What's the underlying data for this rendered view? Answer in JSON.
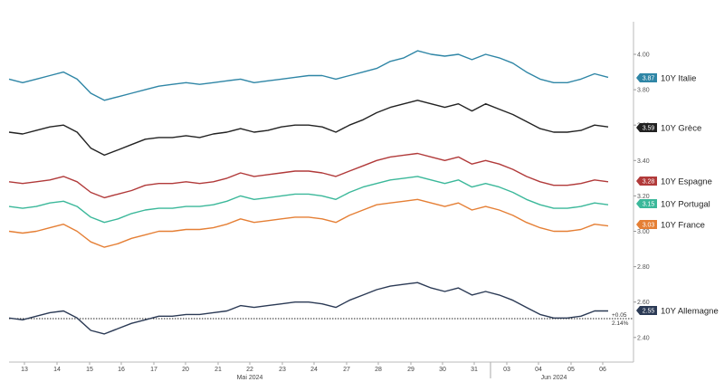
{
  "chart_data": {
    "type": "line",
    "title": "",
    "y_ticks": [
      "2.40",
      "2.60",
      "2.80",
      "3.00",
      "3.20",
      "3.40",
      "3.60",
      "3.80",
      "4.00"
    ],
    "ylim": [
      2.3,
      4.12
    ],
    "x_tick_labels": [
      "13",
      "14",
      "15",
      "16",
      "17",
      "20",
      "21",
      "22",
      "23",
      "24",
      "27",
      "28",
      "29",
      "30",
      "31",
      "03",
      "04",
      "05",
      "06"
    ],
    "month_labels": [
      "Mai 2024",
      "Jun 2024"
    ],
    "annotations": {
      "spread_change": "+0.05",
      "spread_level": "2.14%"
    },
    "grid": false,
    "legend": "right-side labels",
    "series": [
      {
        "name": "10Y Italie",
        "badge": "3.87",
        "color": "#2f86a6",
        "values": [
          3.86,
          3.84,
          3.86,
          3.88,
          3.9,
          3.86,
          3.78,
          3.74,
          3.76,
          3.78,
          3.8,
          3.82,
          3.83,
          3.84,
          3.83,
          3.84,
          3.85,
          3.86,
          3.84,
          3.85,
          3.86,
          3.87,
          3.88,
          3.88,
          3.86,
          3.88,
          3.9,
          3.92,
          3.96,
          3.98,
          4.02,
          4.0,
          3.99,
          4.0,
          3.97,
          4.0,
          3.98,
          3.95,
          3.9,
          3.86,
          3.84,
          3.84,
          3.86,
          3.89,
          3.87
        ]
      },
      {
        "name": "10Y Grèce",
        "badge": "3.59",
        "color": "#222222",
        "values": [
          3.56,
          3.55,
          3.57,
          3.59,
          3.6,
          3.56,
          3.47,
          3.43,
          3.46,
          3.49,
          3.52,
          3.53,
          3.53,
          3.54,
          3.53,
          3.55,
          3.56,
          3.58,
          3.56,
          3.57,
          3.59,
          3.6,
          3.6,
          3.59,
          3.56,
          3.6,
          3.63,
          3.67,
          3.7,
          3.72,
          3.74,
          3.72,
          3.7,
          3.72,
          3.68,
          3.72,
          3.69,
          3.66,
          3.62,
          3.58,
          3.56,
          3.56,
          3.57,
          3.6,
          3.59
        ]
      },
      {
        "name": "10Y Espagne",
        "badge": "3.28",
        "color": "#b13a3a",
        "values": [
          3.28,
          3.27,
          3.28,
          3.29,
          3.31,
          3.28,
          3.22,
          3.19,
          3.21,
          3.23,
          3.26,
          3.27,
          3.27,
          3.28,
          3.27,
          3.28,
          3.3,
          3.33,
          3.31,
          3.32,
          3.33,
          3.34,
          3.34,
          3.33,
          3.31,
          3.34,
          3.37,
          3.4,
          3.42,
          3.43,
          3.44,
          3.42,
          3.4,
          3.42,
          3.38,
          3.4,
          3.38,
          3.35,
          3.31,
          3.28,
          3.26,
          3.26,
          3.27,
          3.29,
          3.28
        ]
      },
      {
        "name": "10Y Portugal",
        "badge": "3.15",
        "color": "#3bb89a",
        "values": [
          3.14,
          3.13,
          3.14,
          3.16,
          3.17,
          3.14,
          3.08,
          3.05,
          3.07,
          3.1,
          3.12,
          3.13,
          3.13,
          3.14,
          3.14,
          3.15,
          3.17,
          3.2,
          3.18,
          3.19,
          3.2,
          3.21,
          3.21,
          3.2,
          3.18,
          3.22,
          3.25,
          3.27,
          3.29,
          3.3,
          3.31,
          3.29,
          3.27,
          3.29,
          3.25,
          3.27,
          3.25,
          3.22,
          3.18,
          3.15,
          3.13,
          3.13,
          3.14,
          3.16,
          3.15
        ]
      },
      {
        "name": "10Y France",
        "badge": "3.03",
        "color": "#e57f35",
        "values": [
          3.0,
          2.99,
          3.0,
          3.02,
          3.04,
          3.0,
          2.94,
          2.91,
          2.93,
          2.96,
          2.98,
          3.0,
          3.0,
          3.01,
          3.01,
          3.02,
          3.04,
          3.07,
          3.05,
          3.06,
          3.07,
          3.08,
          3.08,
          3.07,
          3.05,
          3.09,
          3.12,
          3.15,
          3.16,
          3.17,
          3.18,
          3.16,
          3.14,
          3.16,
          3.12,
          3.14,
          3.12,
          3.09,
          3.05,
          3.02,
          3.0,
          3.0,
          3.01,
          3.04,
          3.03
        ]
      },
      {
        "name": "10Y Allemagne",
        "badge": "2.55",
        "color": "#2b3a55",
        "values": [
          2.51,
          2.5,
          2.52,
          2.54,
          2.55,
          2.51,
          2.44,
          2.42,
          2.45,
          2.48,
          2.5,
          2.52,
          2.52,
          2.53,
          2.53,
          2.54,
          2.55,
          2.58,
          2.57,
          2.58,
          2.59,
          2.6,
          2.6,
          2.59,
          2.57,
          2.61,
          2.64,
          2.67,
          2.69,
          2.7,
          2.71,
          2.68,
          2.66,
          2.68,
          2.64,
          2.66,
          2.64,
          2.61,
          2.57,
          2.53,
          2.51,
          2.51,
          2.52,
          2.55,
          2.55
        ]
      }
    ]
  }
}
